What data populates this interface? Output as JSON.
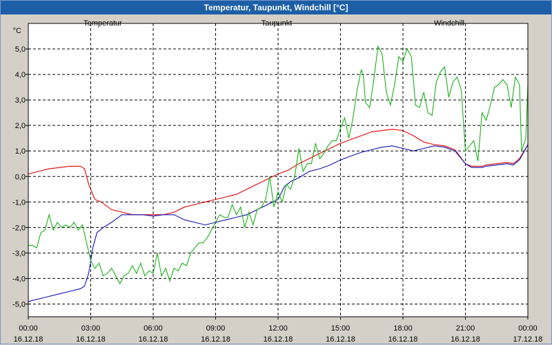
{
  "window": {
    "title": "Temperatur, Taupunkt, Windchill [°C]"
  },
  "chart_data": {
    "type": "line",
    "title": "Temperatur, Taupunkt, Windchill [°C]",
    "ylabel": "°C",
    "ylim": [
      -5.5,
      6.0
    ],
    "xlim": [
      0,
      24
    ],
    "grid": true,
    "legend_position": "top",
    "y_ticks": [
      {
        "value": 5,
        "label": "5,0"
      },
      {
        "value": 4,
        "label": "4,0"
      },
      {
        "value": 3,
        "label": "3,0"
      },
      {
        "value": 2,
        "label": "2,0"
      },
      {
        "value": 1,
        "label": "1,0"
      },
      {
        "value": 0,
        "label": "0,0"
      },
      {
        "value": -1,
        "label": "-1,0"
      },
      {
        "value": -2,
        "label": "-2,0"
      },
      {
        "value": -3,
        "label": "-3,0"
      },
      {
        "value": -4,
        "label": "-4,0"
      },
      {
        "value": -5,
        "label": "-5,0"
      }
    ],
    "x_ticks": [
      {
        "value": 0,
        "time": "00:00",
        "date": "16.12.18"
      },
      {
        "value": 3,
        "time": "03:00",
        "date": "16.12.18"
      },
      {
        "value": 6,
        "time": "06:00",
        "date": "16.12.18"
      },
      {
        "value": 9,
        "time": "09:00",
        "date": "16.12.18"
      },
      {
        "value": 12,
        "time": "12:00",
        "date": "16.12.18"
      },
      {
        "value": 15,
        "time": "15:00",
        "date": "16.12.18"
      },
      {
        "value": 18,
        "time": "18:00",
        "date": "16.12.18"
      },
      {
        "value": 21,
        "time": "21:00",
        "date": "16.12.18"
      },
      {
        "value": 24,
        "time": "00:00",
        "date": "17.12.18"
      }
    ],
    "series": [
      {
        "name": "Temperatur",
        "color": "#e00000",
        "points": [
          [
            0,
            0.1
          ],
          [
            0.5,
            0.2
          ],
          [
            1,
            0.3
          ],
          [
            1.5,
            0.35
          ],
          [
            2,
            0.4
          ],
          [
            2.5,
            0.4
          ],
          [
            2.7,
            0.3
          ],
          [
            2.9,
            -0.3
          ],
          [
            3.2,
            -0.9
          ],
          [
            3.5,
            -1.0
          ],
          [
            4,
            -1.3
          ],
          [
            4.5,
            -1.4
          ],
          [
            5,
            -1.5
          ],
          [
            6,
            -1.5
          ],
          [
            6.5,
            -1.5
          ],
          [
            7,
            -1.4
          ],
          [
            7.5,
            -1.2
          ],
          [
            8,
            -1.1
          ],
          [
            8.5,
            -1.0
          ],
          [
            9,
            -0.9
          ],
          [
            9.5,
            -0.8
          ],
          [
            10,
            -0.7
          ],
          [
            10.5,
            -0.5
          ],
          [
            11,
            -0.3
          ],
          [
            11.5,
            -0.1
          ],
          [
            12,
            0.1
          ],
          [
            12.5,
            0.25
          ],
          [
            13,
            0.5
          ],
          [
            13.5,
            0.7
          ],
          [
            14,
            0.9
          ],
          [
            14.5,
            1.1
          ],
          [
            15,
            1.3
          ],
          [
            15.5,
            1.45
          ],
          [
            16,
            1.6
          ],
          [
            16.5,
            1.75
          ],
          [
            17,
            1.8
          ],
          [
            17.5,
            1.85
          ],
          [
            18,
            1.8
          ],
          [
            18.5,
            1.6
          ],
          [
            19,
            1.35
          ],
          [
            19.5,
            1.25
          ],
          [
            20,
            1.2
          ],
          [
            20.5,
            1.05
          ],
          [
            21,
            0.5
          ],
          [
            21.3,
            0.4
          ],
          [
            21.8,
            0.4
          ],
          [
            22,
            0.45
          ],
          [
            22.5,
            0.5
          ],
          [
            23,
            0.55
          ],
          [
            23.3,
            0.5
          ],
          [
            23.6,
            0.7
          ],
          [
            24,
            1.25
          ]
        ]
      },
      {
        "name": "Taupunkt",
        "color": "#1010b0",
        "points": [
          [
            0,
            -4.9
          ],
          [
            0.5,
            -4.8
          ],
          [
            1,
            -4.7
          ],
          [
            1.5,
            -4.6
          ],
          [
            2,
            -4.5
          ],
          [
            2.5,
            -4.4
          ],
          [
            2.7,
            -4.3
          ],
          [
            2.9,
            -3.8
          ],
          [
            3.1,
            -2.8
          ],
          [
            3.3,
            -2.2
          ],
          [
            3.6,
            -2.0
          ],
          [
            4,
            -1.8
          ],
          [
            4.5,
            -1.5
          ],
          [
            5,
            -1.5
          ],
          [
            5.5,
            -1.5
          ],
          [
            6,
            -1.55
          ],
          [
            6.5,
            -1.5
          ],
          [
            7,
            -1.5
          ],
          [
            7.5,
            -1.7
          ],
          [
            8,
            -1.8
          ],
          [
            8.5,
            -1.9
          ],
          [
            9,
            -1.8
          ],
          [
            9.5,
            -1.7
          ],
          [
            10,
            -1.6
          ],
          [
            10.5,
            -1.5
          ],
          [
            11,
            -1.3
          ],
          [
            11.5,
            -1.1
          ],
          [
            12,
            -0.9
          ],
          [
            12.3,
            -0.4
          ],
          [
            12.6,
            -0.2
          ],
          [
            13,
            -0.05
          ],
          [
            13.5,
            0.2
          ],
          [
            14,
            0.3
          ],
          [
            14.5,
            0.45
          ],
          [
            15,
            0.65
          ],
          [
            15.5,
            0.8
          ],
          [
            16,
            0.95
          ],
          [
            16.5,
            1.05
          ],
          [
            17,
            1.15
          ],
          [
            17.5,
            1.2
          ],
          [
            18,
            1.1
          ],
          [
            18.5,
            1.0
          ],
          [
            19,
            1.1
          ],
          [
            19.5,
            1.2
          ],
          [
            20,
            1.15
          ],
          [
            20.5,
            1.0
          ],
          [
            21,
            0.5
          ],
          [
            21.3,
            0.35
          ],
          [
            21.8,
            0.35
          ],
          [
            22,
            0.4
          ],
          [
            22.5,
            0.45
          ],
          [
            23,
            0.5
          ],
          [
            23.3,
            0.45
          ],
          [
            23.6,
            0.65
          ],
          [
            24,
            1.25
          ]
        ]
      },
      {
        "name": "Windchill",
        "color": "#18b018",
        "points": [
          [
            0,
            -2.7
          ],
          [
            0.2,
            -2.7
          ],
          [
            0.4,
            -2.8
          ],
          [
            0.6,
            -2.2
          ],
          [
            0.8,
            -2.1
          ],
          [
            1,
            -1.5
          ],
          [
            1.2,
            -2.1
          ],
          [
            1.4,
            -1.8
          ],
          [
            1.6,
            -2.0
          ],
          [
            1.8,
            -1.9
          ],
          [
            2,
            -2.0
          ],
          [
            2.2,
            -1.8
          ],
          [
            2.4,
            -2.1
          ],
          [
            2.6,
            -1.9
          ],
          [
            2.8,
            -2.6
          ],
          [
            3,
            -3.3
          ],
          [
            3.2,
            -3.6
          ],
          [
            3.4,
            -3.4
          ],
          [
            3.6,
            -3.9
          ],
          [
            3.8,
            -3.8
          ],
          [
            4,
            -3.6
          ],
          [
            4.2,
            -3.9
          ],
          [
            4.4,
            -4.2
          ],
          [
            4.6,
            -3.9
          ],
          [
            4.8,
            -3.8
          ],
          [
            5,
            -3.5
          ],
          [
            5.2,
            -3.8
          ],
          [
            5.4,
            -3.4
          ],
          [
            5.6,
            -3.9
          ],
          [
            5.8,
            -3.7
          ],
          [
            6,
            -3.8
          ],
          [
            6.2,
            -3.0
          ],
          [
            6.4,
            -3.9
          ],
          [
            6.6,
            -3.6
          ],
          [
            6.8,
            -4.1
          ],
          [
            7,
            -3.6
          ],
          [
            7.2,
            -3.7
          ],
          [
            7.4,
            -3.4
          ],
          [
            7.6,
            -3.5
          ],
          [
            7.8,
            -3.0
          ],
          [
            8,
            -2.8
          ],
          [
            8.2,
            -2.6
          ],
          [
            8.4,
            -2.6
          ],
          [
            8.6,
            -2.4
          ],
          [
            8.8,
            -2.1
          ],
          [
            9,
            -1.8
          ],
          [
            9.2,
            -1.5
          ],
          [
            9.4,
            -1.6
          ],
          [
            9.6,
            -1.6
          ],
          [
            9.8,
            -1.1
          ],
          [
            10,
            -1.5
          ],
          [
            10.2,
            -1.2
          ],
          [
            10.4,
            -2.0
          ],
          [
            10.6,
            -1.4
          ],
          [
            10.8,
            -1.9
          ],
          [
            11,
            -1.3
          ],
          [
            11.2,
            -1.2
          ],
          [
            11.4,
            -0.9
          ],
          [
            11.6,
            0.0
          ],
          [
            11.8,
            -1.2
          ],
          [
            12,
            -0.6
          ],
          [
            12.2,
            -1.0
          ],
          [
            12.4,
            -0.3
          ],
          [
            12.6,
            -0.5
          ],
          [
            12.8,
            0.0
          ],
          [
            13,
            1.1
          ],
          [
            13.2,
            0.2
          ],
          [
            13.4,
            0.5
          ],
          [
            13.6,
            0.5
          ],
          [
            13.8,
            1.3
          ],
          [
            14,
            0.7
          ],
          [
            14.2,
            0.9
          ],
          [
            14.4,
            1.2
          ],
          [
            14.6,
            1.4
          ],
          [
            14.8,
            1.4
          ],
          [
            15,
            1.9
          ],
          [
            15.2,
            2.3
          ],
          [
            15.4,
            1.5
          ],
          [
            15.6,
            2.3
          ],
          [
            15.8,
            3.4
          ],
          [
            16,
            4.2
          ],
          [
            16.1,
            3.9
          ],
          [
            16.2,
            2.9
          ],
          [
            16.4,
            2.7
          ],
          [
            16.6,
            3.8
          ],
          [
            16.8,
            5.1
          ],
          [
            17,
            4.8
          ],
          [
            17.2,
            3.3
          ],
          [
            17.4,
            2.8
          ],
          [
            17.6,
            3.6
          ],
          [
            17.8,
            4.7
          ],
          [
            18,
            4.5
          ],
          [
            18.2,
            5.0
          ],
          [
            18.4,
            4.7
          ],
          [
            18.5,
            3.8
          ],
          [
            18.6,
            2.8
          ],
          [
            18.8,
            2.7
          ],
          [
            19,
            3.3
          ],
          [
            19.2,
            2.5
          ],
          [
            19.4,
            2.4
          ],
          [
            19.6,
            3.7
          ],
          [
            19.8,
            4.1
          ],
          [
            20,
            4.3
          ],
          [
            20.2,
            3.1
          ],
          [
            20.4,
            3.7
          ],
          [
            20.6,
            3.9
          ],
          [
            20.8,
            3.4
          ],
          [
            21,
            1.0
          ],
          [
            21.2,
            1.2
          ],
          [
            21.4,
            1.4
          ],
          [
            21.6,
            0.6
          ],
          [
            21.8,
            2.5
          ],
          [
            22,
            2.2
          ],
          [
            22.2,
            2.8
          ],
          [
            22.4,
            3.5
          ],
          [
            22.6,
            3.6
          ],
          [
            22.8,
            3.8
          ],
          [
            23,
            3.6
          ],
          [
            23.2,
            2.7
          ],
          [
            23.4,
            3.9
          ],
          [
            23.6,
            3.6
          ],
          [
            23.7,
            1.0
          ],
          [
            23.9,
            1.5
          ],
          [
            24,
            3.6
          ]
        ]
      }
    ]
  }
}
